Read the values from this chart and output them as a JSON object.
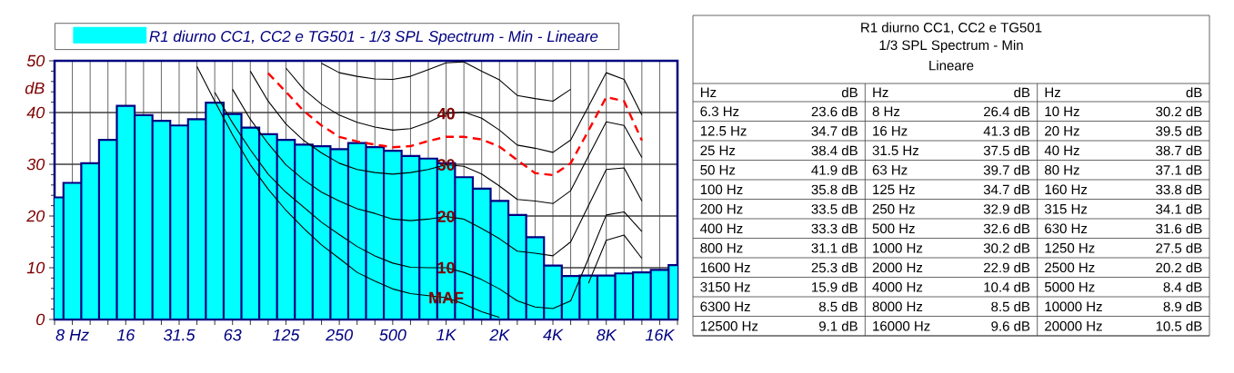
{
  "chart_data": {
    "type": "bar",
    "title": "R1 diurno CC1, CC2 e TG501",
    "subtitle": "1/3 SPL Spectrum - Min",
    "ylabel": "dB",
    "categories": [
      null,
      "8 Hz",
      null,
      null,
      "16",
      null,
      null,
      "31.5",
      null,
      null,
      "63",
      null,
      null,
      "125",
      null,
      null,
      "250",
      null,
      null,
      "500",
      null,
      null,
      "1K",
      null,
      null,
      "2K",
      null,
      null,
      "4K",
      null,
      null,
      "8K",
      null,
      null,
      "16K",
      null
    ],
    "series": [
      {
        "name": "R1 diurno CC1, CC2 e TG501 - 1/3 SPL Spectrum - Min - Lineare",
        "color": "#00ffff",
        "values": [
          23.6,
          26.4,
          30.2,
          34.7,
          41.3,
          39.5,
          38.4,
          37.5,
          38.7,
          41.9,
          39.7,
          37.1,
          35.8,
          34.7,
          33.8,
          33.5,
          32.9,
          34.1,
          33.3,
          32.6,
          31.6,
          31.1,
          30.2,
          27.5,
          25.3,
          22.9,
          20.2,
          15.9,
          10.4,
          8.4,
          8.5,
          8.5,
          8.9,
          9.1,
          9.6,
          10.5
        ]
      },
      {
        "type": "line",
        "color": "#000000",
        "line_style": "solid",
        "values": [
          null,
          null,
          null,
          null,
          null,
          null,
          null,
          null,
          null,
          null,
          null,
          null,
          null,
          null,
          null,
          49.5,
          47.7,
          47,
          46.5,
          46.4,
          47,
          48.3,
          49.6,
          49.8,
          48,
          46.3,
          43.3,
          42.7,
          42.2,
          44.5,
          null,
          null,
          null,
          null,
          null,
          null
        ]
      },
      {
        "type": "line",
        "name": "40",
        "color": "#000000",
        "line_style": "solid",
        "values": [
          null,
          null,
          null,
          null,
          null,
          null,
          null,
          null,
          null,
          null,
          null,
          null,
          null,
          48.6,
          44.5,
          41.6,
          39.5,
          38.1,
          37.2,
          36.6,
          36.9,
          38.1,
          39.8,
          40.1,
          38.9,
          36.6,
          33.7,
          33.1,
          32.3,
          34.7,
          41.2,
          47.7,
          46.4,
          39.5,
          null,
          null
        ]
      },
      {
        "type": "line",
        "name": "30",
        "color": "#000000",
        "line_style": "solid",
        "values": [
          null,
          null,
          null,
          null,
          null,
          null,
          null,
          null,
          null,
          null,
          null,
          48,
          42.2,
          37.8,
          34.6,
          32.2,
          30.2,
          29,
          28.4,
          28.1,
          28.4,
          29,
          29.9,
          29.6,
          28.1,
          25.8,
          23.2,
          22.9,
          22.4,
          24.9,
          31.6,
          38.2,
          37.5,
          31.3,
          null,
          null
        ]
      },
      {
        "type": "line",
        "name": "20",
        "color": "#000000",
        "line_style": "solid",
        "values": [
          null,
          null,
          null,
          null,
          null,
          null,
          null,
          null,
          null,
          null,
          44.5,
          38.7,
          34,
          29.9,
          27,
          24.6,
          22.9,
          21.4,
          20.5,
          19.4,
          19.1,
          19.4,
          19.9,
          19.4,
          17.6,
          15.6,
          13.2,
          12.8,
          12.3,
          15,
          22,
          29,
          29.3,
          22.9,
          null,
          null
        ]
      },
      {
        "type": "line",
        "name": "10",
        "color": "#000000",
        "line_style": "solid",
        "values": [
          null,
          null,
          null,
          null,
          null,
          null,
          null,
          null,
          null,
          43.9,
          38,
          32.8,
          28.1,
          24.6,
          21.7,
          18.8,
          16.4,
          14.1,
          12.3,
          10.9,
          10.1,
          10,
          10,
          9.1,
          7.7,
          5.9,
          3.6,
          2.4,
          2.1,
          3.6,
          11.8,
          20.2,
          20.8,
          17,
          null,
          null
        ]
      },
      {
        "type": "line",
        "name": "MAF",
        "color": "#000000",
        "line_style": "solid",
        "values": [
          null,
          null,
          null,
          null,
          null,
          null,
          null,
          null,
          48.9,
          42.2,
          35.7,
          29.9,
          25.2,
          21.1,
          17.6,
          14.4,
          11.8,
          9.1,
          7.4,
          5.9,
          5,
          4.6,
          4.2,
          3,
          1.5,
          0.4,
          null,
          null,
          null,
          null,
          7,
          15.3,
          16.3,
          11.8,
          null,
          null
        ]
      },
      {
        "type": "line",
        "color": "#ff0000",
        "line_style": "dashed",
        "values": [
          null,
          null,
          null,
          null,
          null,
          null,
          null,
          null,
          null,
          null,
          null,
          null,
          47.6,
          44,
          40.3,
          37.5,
          35.3,
          34.4,
          33.8,
          33.3,
          33.5,
          34.5,
          35.3,
          35.3,
          34.8,
          33.4,
          30.8,
          28.3,
          27.9,
          30.2,
          36.5,
          43,
          42.2,
          34.6,
          null,
          null
        ]
      }
    ],
    "ylim": [
      0,
      50
    ],
    "yticks": [
      0,
      10,
      20,
      30,
      40,
      50
    ],
    "grid": true,
    "legend": "top",
    "annotations": [
      "Lineare",
      "Hz",
      "dB",
      "6.3 Hz",
      "8 Hz",
      "10 Hz",
      "12.5 Hz",
      "16 Hz",
      "20 Hz",
      "25 Hz",
      "31.5 Hz",
      "40 Hz",
      "50 Hz",
      "63 Hz",
      "80 Hz",
      "100 Hz",
      "125 Hz",
      "160 Hz",
      "200 Hz",
      "250 Hz",
      "315 Hz",
      "400 Hz",
      "500 Hz",
      "630 Hz",
      "800 Hz",
      "1000 Hz",
      "1250 Hz",
      "1600 Hz",
      "2000 Hz",
      "2500 Hz",
      "3150 Hz",
      "4000 Hz",
      "5000 Hz",
      "6300 Hz",
      "8000 Hz",
      "10000 Hz",
      "12500 Hz",
      "16000 Hz",
      "20000 Hz",
      "23.6 dB",
      "26.4 dB",
      "30.2 dB",
      "34.7 dB",
      "41.3 dB",
      "39.5 dB",
      "38.4 dB",
      "37.5 dB",
      "38.7 dB",
      "41.9 dB",
      "39.7 dB",
      "37.1 dB",
      "35.8 dB",
      "34.7 dB",
      "33.8 dB",
      "33.5 dB",
      "32.9 dB",
      "34.1 dB",
      "33.3 dB",
      "32.6 dB",
      "31.6 dB",
      "31.1 dB",
      "30.2 dB",
      "27.5 dB",
      "25.3 dB",
      "22.9 dB",
      "20.2 dB",
      "15.9 dB",
      "10.4 dB",
      "8.4 dB",
      "8.5 dB",
      "8.5 dB",
      "8.9 dB",
      "9.1 dB",
      "9.6 dB",
      "10.5 dB"
    ]
  }
}
